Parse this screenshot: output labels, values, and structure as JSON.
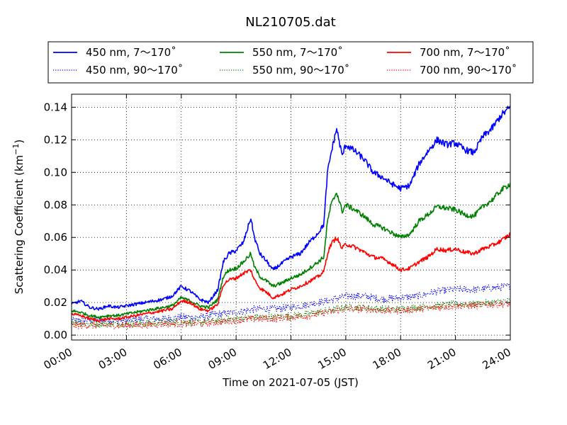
{
  "chart_data": {
    "type": "line",
    "title": "NL210705.dat",
    "xlabel": "Time on 2021-07-05 (JST)",
    "ylabel": "Scattering Coefficient (km",
    "ylabel_exponent": "−1",
    "ylabel_suffix": ")",
    "xlim": [
      "2021-07-05 00:00",
      "2021-07-06 00:00"
    ],
    "ylim": [
      -0.003,
      0.148
    ],
    "xticks": [
      "00:00",
      "03:00",
      "06:00",
      "09:00",
      "12:00",
      "15:00",
      "18:00",
      "21:00",
      "24:00"
    ],
    "yticks": [
      "0.00",
      "0.02",
      "0.04",
      "0.06",
      "0.08",
      "0.10",
      "0.12",
      "0.14"
    ],
    "ytick_values": [
      0.0,
      0.02,
      0.04,
      0.06,
      0.08,
      0.1,
      0.12,
      0.14
    ],
    "grid": true,
    "legend_position": "top, outside plot, 3 columns",
    "x_unit": "hours JST",
    "series": [
      {
        "name": "450 nm, 7～170˚",
        "color": "#0000ff",
        "style": "solid",
        "x": [
          0,
          0.5,
          1,
          1.5,
          2,
          2.5,
          3,
          3.5,
          4,
          4.5,
          5,
          5.5,
          6,
          6.5,
          7,
          7.5,
          8,
          8.3,
          8.6,
          9,
          9.4,
          9.8,
          10,
          10.3,
          10.7,
          11,
          11.5,
          12,
          12.5,
          13,
          13.5,
          13.8,
          14,
          14.2,
          14.5,
          14.8,
          15,
          15.5,
          16,
          16.5,
          17,
          17.5,
          18,
          18.5,
          19,
          19.5,
          20,
          20.5,
          21,
          21.5,
          22,
          22.5,
          23,
          23.5,
          24
        ],
        "y": [
          0.019,
          0.021,
          0.017,
          0.016,
          0.018,
          0.017,
          0.018,
          0.019,
          0.02,
          0.021,
          0.022,
          0.024,
          0.03,
          0.027,
          0.022,
          0.02,
          0.028,
          0.045,
          0.05,
          0.052,
          0.057,
          0.072,
          0.06,
          0.05,
          0.045,
          0.04,
          0.044,
          0.048,
          0.05,
          0.057,
          0.063,
          0.068,
          0.1,
          0.112,
          0.127,
          0.11,
          0.117,
          0.113,
          0.108,
          0.1,
          0.097,
          0.093,
          0.09,
          0.092,
          0.105,
          0.113,
          0.12,
          0.117,
          0.118,
          0.114,
          0.112,
          0.122,
          0.127,
          0.135,
          0.14
        ]
      },
      {
        "name": "550 nm, 7～170˚",
        "color": "#008000",
        "style": "solid",
        "x": [
          0,
          0.5,
          1,
          1.5,
          2,
          2.5,
          3,
          3.5,
          4,
          4.5,
          5,
          5.5,
          6,
          6.5,
          7,
          7.5,
          8,
          8.3,
          8.6,
          9,
          9.4,
          9.8,
          10,
          10.3,
          10.7,
          11,
          11.5,
          12,
          12.5,
          13,
          13.5,
          13.8,
          14,
          14.2,
          14.5,
          14.8,
          15,
          15.5,
          16,
          16.5,
          17,
          17.5,
          18,
          18.5,
          19,
          19.5,
          20,
          20.5,
          21,
          21.5,
          22,
          22.5,
          23,
          23.5,
          24
        ],
        "y": [
          0.015,
          0.014,
          0.012,
          0.011,
          0.012,
          0.012,
          0.013,
          0.014,
          0.015,
          0.016,
          0.017,
          0.018,
          0.023,
          0.021,
          0.018,
          0.017,
          0.022,
          0.036,
          0.04,
          0.041,
          0.045,
          0.05,
          0.042,
          0.036,
          0.033,
          0.03,
          0.032,
          0.035,
          0.037,
          0.041,
          0.045,
          0.048,
          0.07,
          0.08,
          0.088,
          0.076,
          0.08,
          0.077,
          0.073,
          0.068,
          0.066,
          0.063,
          0.06,
          0.062,
          0.07,
          0.074,
          0.079,
          0.078,
          0.077,
          0.074,
          0.073,
          0.079,
          0.083,
          0.089,
          0.093
        ]
      },
      {
        "name": "700 nm, 7～170˚",
        "color": "#ff0000",
        "style": "solid",
        "x": [
          0,
          0.5,
          1,
          1.5,
          2,
          2.5,
          3,
          3.5,
          4,
          4.5,
          5,
          5.5,
          6,
          6.5,
          7,
          7.5,
          8,
          8.3,
          8.6,
          9,
          9.4,
          9.8,
          10,
          10.3,
          10.7,
          11,
          11.5,
          12,
          12.5,
          13,
          13.5,
          13.8,
          14,
          14.2,
          14.5,
          14.8,
          15,
          15.5,
          16,
          16.5,
          17,
          17.5,
          18,
          18.5,
          19,
          19.5,
          20,
          20.5,
          21,
          21.5,
          22,
          22.5,
          23,
          23.5,
          24
        ],
        "y": [
          0.013,
          0.012,
          0.01,
          0.009,
          0.01,
          0.01,
          0.011,
          0.012,
          0.013,
          0.014,
          0.015,
          0.016,
          0.021,
          0.02,
          0.016,
          0.015,
          0.019,
          0.031,
          0.034,
          0.035,
          0.038,
          0.04,
          0.034,
          0.029,
          0.026,
          0.023,
          0.025,
          0.028,
          0.03,
          0.033,
          0.036,
          0.039,
          0.05,
          0.056,
          0.06,
          0.053,
          0.056,
          0.054,
          0.051,
          0.048,
          0.047,
          0.044,
          0.04,
          0.041,
          0.045,
          0.048,
          0.053,
          0.052,
          0.053,
          0.051,
          0.05,
          0.053,
          0.055,
          0.058,
          0.062
        ]
      },
      {
        "name": "450 nm, 90～170˚",
        "color": "#0000ff",
        "style": "dotted",
        "x": [
          0,
          1,
          2,
          3,
          4,
          5,
          6,
          7,
          8,
          9,
          10,
          11,
          12,
          13,
          14,
          15,
          16,
          17,
          18,
          19,
          20,
          21,
          22,
          23,
          24
        ],
        "y": [
          0.009,
          0.009,
          0.009,
          0.009,
          0.01,
          0.01,
          0.011,
          0.011,
          0.013,
          0.014,
          0.016,
          0.016,
          0.017,
          0.019,
          0.021,
          0.024,
          0.024,
          0.022,
          0.023,
          0.024,
          0.027,
          0.028,
          0.028,
          0.029,
          0.03
        ]
      },
      {
        "name": "550 nm, 90～170˚",
        "color": "#008000",
        "style": "dotted",
        "x": [
          0,
          1,
          2,
          3,
          4,
          5,
          6,
          7,
          8,
          9,
          10,
          11,
          12,
          13,
          14,
          15,
          16,
          17,
          18,
          19,
          20,
          21,
          22,
          23,
          24
        ],
        "y": [
          0.008,
          0.007,
          0.007,
          0.007,
          0.007,
          0.008,
          0.008,
          0.008,
          0.009,
          0.01,
          0.011,
          0.011,
          0.012,
          0.013,
          0.015,
          0.017,
          0.017,
          0.016,
          0.016,
          0.017,
          0.018,
          0.019,
          0.019,
          0.02,
          0.021
        ]
      },
      {
        "name": "700 nm, 90～170˚",
        "color": "#ff0000",
        "style": "dotted",
        "x": [
          0,
          1,
          2,
          3,
          4,
          5,
          6,
          7,
          8,
          9,
          10,
          11,
          12,
          13,
          14,
          15,
          16,
          17,
          18,
          19,
          20,
          21,
          22,
          23,
          24
        ],
        "y": [
          0.006,
          0.006,
          0.006,
          0.006,
          0.006,
          0.007,
          0.007,
          0.007,
          0.008,
          0.009,
          0.01,
          0.01,
          0.011,
          0.012,
          0.014,
          0.016,
          0.016,
          0.015,
          0.015,
          0.016,
          0.017,
          0.018,
          0.018,
          0.019,
          0.019
        ]
      }
    ]
  }
}
